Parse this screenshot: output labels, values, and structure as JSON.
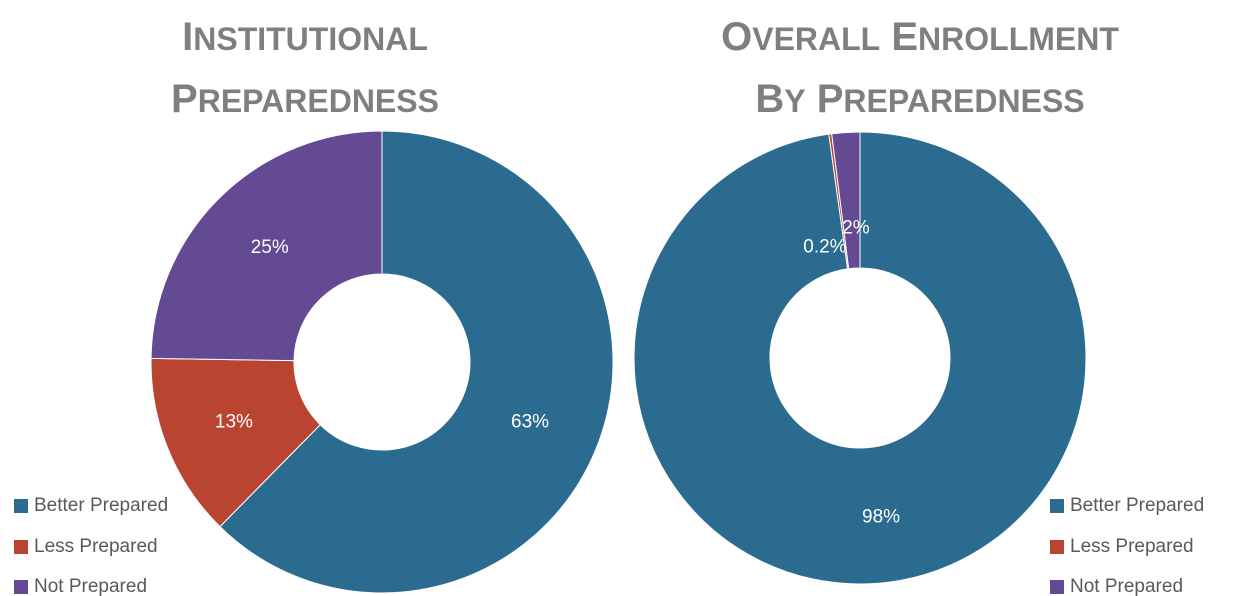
{
  "chart_data": [
    {
      "type": "pie",
      "variant": "donut",
      "title_lines": [
        "Institutional",
        "Preparedness"
      ],
      "categories": [
        "Better Prepared",
        "Less Prepared",
        "Not Prepared"
      ],
      "values": [
        63,
        13,
        25
      ],
      "data_labels": [
        "63%",
        "13%",
        "25%"
      ],
      "colors": [
        "#2a6b8f",
        "#b94431",
        "#634a92"
      ],
      "legend": "bottom-left"
    },
    {
      "type": "pie",
      "variant": "donut",
      "title_lines": [
        "Overall Enrollment",
        "by Preparedness"
      ],
      "categories": [
        "Better Prepared",
        "Less Prepared",
        "Not Prepared"
      ],
      "values": [
        97.8,
        0.2,
        2
      ],
      "data_labels": [
        "98%",
        "0.2%",
        "2%"
      ],
      "colors": [
        "#2a6b8f",
        "#b94431",
        "#634a92"
      ],
      "legend": "bottom-right"
    }
  ]
}
